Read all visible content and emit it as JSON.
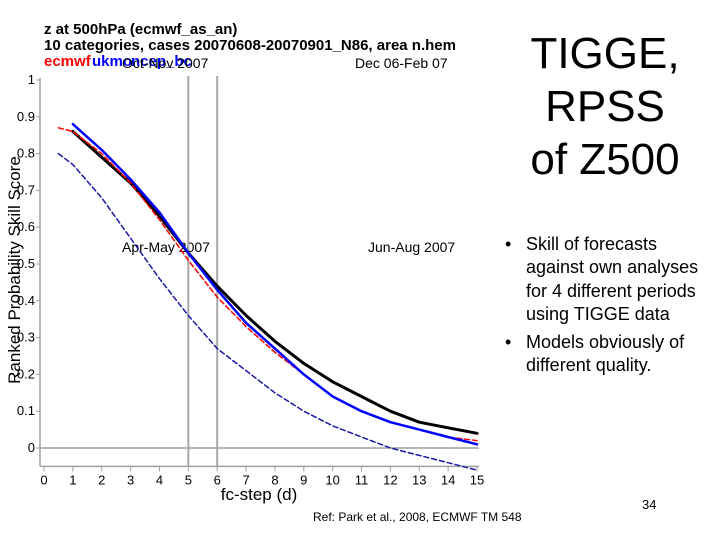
{
  "slide": {
    "title_lines": [
      "TIGGE,",
      "RPSS",
      "of Z500"
    ],
    "bullets": [
      "Skill of forecasts against own analyses for 4 different periods using TIGGE data",
      "Models obviously of different quality."
    ],
    "reference": "Ref: Park et al., 2008, ECMWF TM 548",
    "page_number": "34"
  },
  "chart_data": {
    "type": "line",
    "title_lines": [
      "z at 500hPa (ecmwf_as_an)",
      "10 categories, cases 20070608-20070901_N86, area n.hem"
    ],
    "legend": [
      {
        "name": "ecmwf",
        "color": "#ff0000"
      },
      {
        "name": "ukmo",
        "color": "#0000ff"
      },
      {
        "name": "ncep_bc",
        "color": "#0000ff"
      }
    ],
    "period_labels": [
      "Oct-Nov 2007",
      "Dec 06-Feb 07",
      "Apr-May 2007",
      "Jun-Aug 2007"
    ],
    "xlabel": "fc-step (d)",
    "ylabel": "Ranked Probability Skill Score",
    "x_ticks": [
      "0",
      "1",
      "2",
      "3",
      "4",
      "5",
      "6",
      "7",
      "8",
      "9",
      "10",
      "11",
      "12",
      "13",
      "14",
      "15"
    ],
    "y_ticks": [
      "0",
      "0.1",
      "0.2",
      "0.3",
      "0.4",
      "0.5",
      "0.6",
      "0.7",
      "0.8",
      "0.9",
      "1"
    ],
    "xlim": [
      0,
      15
    ],
    "ylim": [
      -0.05,
      1
    ],
    "vlines": [
      5,
      6
    ],
    "colors": {
      "axis": "#a0a0a0",
      "vline": "#a8a8a8",
      "title": "#000000"
    },
    "series": [
      {
        "name": "ecmwf",
        "color": "#000000",
        "style": "solid",
        "width": 3,
        "x": [
          1,
          2,
          3,
          4,
          5,
          6,
          7,
          8,
          9,
          10,
          11,
          12,
          13,
          14,
          15
        ],
        "y": [
          0.86,
          0.79,
          0.72,
          0.63,
          0.53,
          0.44,
          0.36,
          0.29,
          0.23,
          0.18,
          0.14,
          0.1,
          0.07,
          0.055,
          0.04
        ]
      },
      {
        "name": "ukmo",
        "color": "#ff0000",
        "style": "dashed",
        "width": 1.5,
        "x": [
          0.5,
          1,
          2,
          3,
          4,
          5,
          6,
          7,
          8,
          9,
          10,
          11,
          12,
          13,
          14,
          15
        ],
        "y": [
          0.87,
          0.86,
          0.8,
          0.72,
          0.62,
          0.51,
          0.41,
          0.33,
          0.26,
          0.2,
          0.14,
          0.1,
          0.07,
          0.05,
          0.03,
          0.02
        ]
      },
      {
        "name": "ncep_bc",
        "color": "#0000ff",
        "style": "solid",
        "width": 2.5,
        "x": [
          1,
          2,
          3,
          4,
          5,
          6,
          7,
          8,
          9,
          10,
          11,
          12,
          13,
          14,
          15
        ],
        "y": [
          0.88,
          0.81,
          0.73,
          0.64,
          0.53,
          0.43,
          0.34,
          0.27,
          0.2,
          0.14,
          0.1,
          0.07,
          0.05,
          0.03,
          0.01
        ]
      },
      {
        "name": "ncep",
        "color": "#1a1aa0",
        "style": "dashed",
        "width": 1.5,
        "x": [
          0.5,
          1,
          2,
          3,
          4,
          5,
          6,
          7,
          8,
          9,
          10,
          11,
          12,
          13,
          14,
          15
        ],
        "y": [
          0.8,
          0.77,
          0.68,
          0.57,
          0.46,
          0.36,
          0.27,
          0.21,
          0.15,
          0.1,
          0.06,
          0.03,
          0.0,
          -0.02,
          -0.04,
          -0.06
        ]
      }
    ]
  }
}
